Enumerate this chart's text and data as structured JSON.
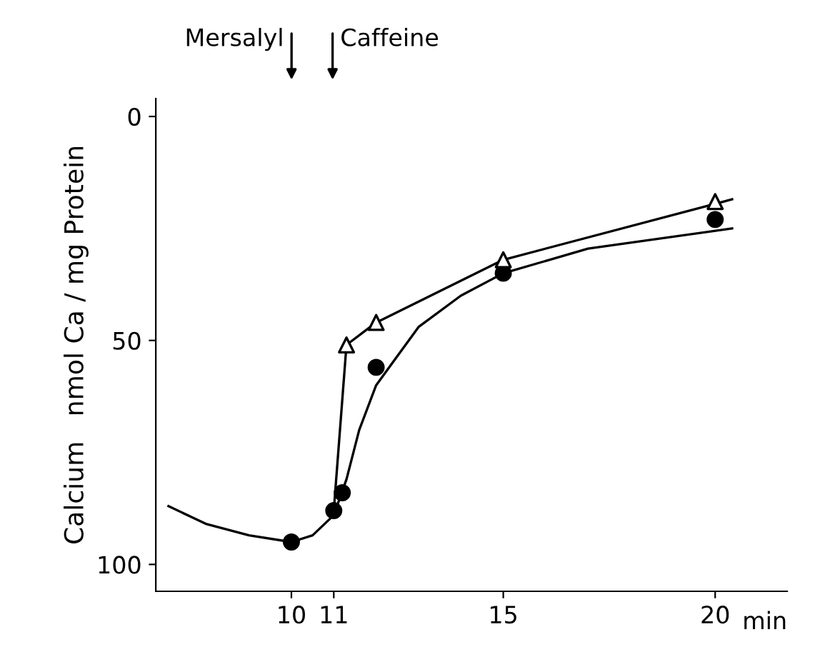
{
  "chart_data": {
    "type": "line",
    "xlabel": "min",
    "ylabel": "Calcium   nmol Ca / mg Protein",
    "xlim": [
      6.8,
      21.7
    ],
    "xticks": [
      10,
      11,
      15,
      20
    ],
    "ylim": [
      106,
      -4
    ],
    "yticks": [
      0,
      50,
      100
    ],
    "grid": false,
    "legend": false,
    "series": [
      {
        "color": "#000000",
        "marker": "none",
        "x": [
          7.1,
          8,
          9,
          10,
          10.5,
          11,
          11.3,
          11.6,
          12,
          13,
          14,
          15,
          17,
          20.4
        ],
        "values": [
          87,
          91,
          93.5,
          95,
          93.5,
          89,
          81,
          70,
          60,
          47,
          40,
          35,
          29.5,
          25
        ]
      },
      {
        "color": "#000000",
        "marker": "none",
        "x": [
          11,
          11.3,
          12,
          15,
          20.4
        ],
        "values": [
          88,
          51,
          46,
          32,
          18.5
        ]
      },
      {
        "type": "scatter",
        "color": "#000000",
        "marker": "circle",
        "x": [
          10,
          11,
          11.2,
          12,
          15,
          20
        ],
        "values": [
          95,
          88,
          84,
          56,
          35,
          23
        ]
      },
      {
        "type": "scatter",
        "color": "#000000",
        "marker": "triangle",
        "x": [
          11.3,
          12,
          15,
          20
        ],
        "values": [
          51,
          46,
          32,
          19
        ]
      }
    ],
    "annotations": [
      "Mersalyl",
      "Caffeine"
    ]
  }
}
